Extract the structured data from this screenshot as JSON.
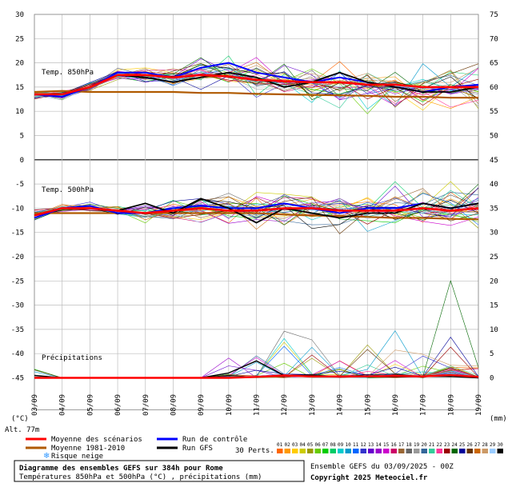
{
  "chart_data": {
    "type": "line",
    "title": "Diagramme des ensembles GEFS sur 384h pour Rome",
    "subtitle": "Températures 850hPa et 500hPa (°C) , précipitations (mm)",
    "panel_labels": [
      "Temp. 850hPa",
      "Temp. 500hPa",
      "Précipitations"
    ],
    "left_axis_unit": "(°C)",
    "right_axis_unit": "(mm)",
    "altitude_label": "Alt. 77m",
    "left_ticks": [
      "30",
      "25",
      "20",
      "15",
      "10",
      "5",
      "0",
      "-5",
      "-10",
      "-15",
      "-20",
      "-25",
      "-30",
      "-35",
      "-40",
      "-45"
    ],
    "right_ticks": [
      "75",
      "70",
      "65",
      "60",
      "55",
      "50",
      "45",
      "40",
      "35",
      "30",
      "25",
      "20",
      "15",
      "10",
      "5",
      "0"
    ],
    "dates": [
      "04/09",
      "05/09",
      "06/09",
      "07/09",
      "08/09",
      "09/09",
      "10/09",
      "11/09",
      "12/09",
      "13/09",
      "14/09",
      "15/09",
      "16/09",
      "17/09",
      "18/09",
      "19/09"
    ],
    "first_date_label": "03/09",
    "legend": {
      "mean": "Moyenne des scénarios",
      "control": "Run de contrôle",
      "climo": "Moyenne 1981-2010",
      "gfs": "Run GFS",
      "perts_label": "30 Perts.",
      "snow": "Risque neige",
      "pert_numbers": [
        "01",
        "02",
        "03",
        "04",
        "05",
        "06",
        "07",
        "08",
        "09",
        "10",
        "11",
        "12",
        "13",
        "14",
        "15",
        "16",
        "17",
        "18",
        "19",
        "20",
        "21",
        "22",
        "23",
        "24",
        "25",
        "26",
        "27",
        "28",
        "29",
        "30"
      ]
    },
    "colors": {
      "mean": "#ff0000",
      "control": "#0000ff",
      "climo": "#b05a00",
      "gfs": "#000000",
      "pert_palette": [
        "#ff6600",
        "#ff9900",
        "#ffcc00",
        "#cccc00",
        "#999900",
        "#66cc00",
        "#00cc00",
        "#00cc66",
        "#00cccc",
        "#0099cc",
        "#0066ff",
        "#3333cc",
        "#6600cc",
        "#9900cc",
        "#cc00cc",
        "#cc0066",
        "#996633",
        "#666666",
        "#999999",
        "#336699",
        "#33cc99",
        "#ff3399",
        "#990000",
        "#006600",
        "#000099",
        "#663300",
        "#cc6600",
        "#cc9966",
        "#99ccff",
        "#000000"
      ]
    },
    "x_days": [
      3,
      4,
      5,
      6,
      7,
      8,
      9,
      10,
      11,
      12,
      13,
      14,
      15,
      16,
      17,
      18,
      19
    ],
    "t850": {
      "mean": [
        13.5,
        13.5,
        15,
        17.5,
        17.5,
        17,
        17.5,
        17.2,
        16.5,
        16.2,
        16,
        16,
        15.5,
        15.5,
        15,
        15,
        15
      ],
      "climo": [
        14,
        14.2,
        14,
        14,
        14,
        14,
        13.8,
        13.8,
        13.6,
        13.5,
        13.4,
        13.3,
        13.2,
        13,
        13,
        12.8,
        12.8
      ],
      "control": [
        13.5,
        13,
        15,
        18,
        18,
        17,
        19,
        20,
        18,
        17,
        16,
        17,
        16,
        15,
        14,
        15,
        15.5
      ],
      "gfs": [
        13.5,
        13.5,
        15,
        17.5,
        17,
        16,
        17,
        18,
        17,
        15,
        16,
        18,
        16,
        15,
        14,
        14,
        15
      ],
      "spread_min": [
        12.5,
        12,
        14,
        16,
        15,
        14,
        14,
        13,
        12,
        11,
        10,
        10,
        9,
        8,
        9,
        9,
        10
      ],
      "spread_max": [
        14.5,
        14.5,
        16.5,
        19,
        19.5,
        20,
        22,
        23,
        22,
        22,
        21,
        21,
        21,
        21,
        21,
        21,
        21
      ]
    },
    "t500": {
      "mean": [
        -11.5,
        -10,
        -10,
        -10.5,
        -11,
        -10.5,
        -10,
        -10.5,
        -10.5,
        -10,
        -10,
        -10.5,
        -10.5,
        -10.5,
        -10,
        -10.5,
        -10
      ],
      "climo": [
        -11,
        -11,
        -11,
        -11,
        -11,
        -11,
        -11,
        -11,
        -11,
        -11.3,
        -11.5,
        -11.6,
        -11.8,
        -12,
        -12,
        -12.2,
        -12.3
      ],
      "control": [
        -12,
        -10,
        -9.5,
        -11,
        -11,
        -10,
        -9.5,
        -10,
        -10,
        -9,
        -10,
        -11,
        -10,
        -10,
        -9,
        -10,
        -9
      ],
      "gfs": [
        -11.5,
        -10,
        -10,
        -10.5,
        -9,
        -11,
        -8,
        -10,
        -13,
        -10,
        -11,
        -12,
        -11,
        -11,
        -9,
        -10,
        -9
      ],
      "spread_min": [
        -13,
        -11,
        -11,
        -12,
        -14,
        -15,
        -14,
        -14,
        -15,
        -15,
        -16,
        -16,
        -16,
        -16,
        -15,
        -15,
        -16
      ],
      "spread_max": [
        -10,
        -9,
        -8.5,
        -9,
        -8,
        -7,
        -6,
        -6,
        -6,
        -6,
        -6,
        -5,
        -5,
        -4,
        -3,
        -3,
        -4
      ]
    },
    "precip_mm": {
      "mean": [
        0,
        0,
        0,
        0,
        0,
        0,
        0,
        0,
        0.2,
        0.5,
        0.3,
        0.3,
        0.3,
        0.4,
        0.3,
        0.6,
        0.2
      ],
      "gfs": [
        0.5,
        0,
        0,
        0,
        0,
        0,
        0,
        1,
        3.5,
        0.5,
        0.5,
        0.2,
        0.3,
        0.2,
        0.3,
        0.3,
        0
      ],
      "spread_max": [
        2,
        0,
        0,
        0,
        0,
        0,
        0,
        8,
        5,
        10,
        8,
        5,
        7,
        10,
        5,
        25,
        3
      ]
    }
  }
}
